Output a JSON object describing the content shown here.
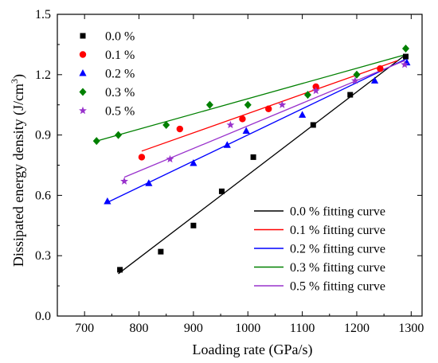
{
  "chart_data": {
    "type": "scatter",
    "xlabel": "Loading rate (GPa/s)",
    "ylabel_main": "Dissipated energy density (J/cm",
    "ylabel_sup": "3",
    "ylabel_end": ")",
    "xlim": [
      650,
      1320
    ],
    "ylim": [
      0.0,
      1.5
    ],
    "xticks": [
      700,
      800,
      900,
      1000,
      1100,
      1200,
      1300
    ],
    "yticks": [
      0.0,
      0.3,
      0.6,
      0.9,
      1.2,
      1.5
    ],
    "grid": false,
    "legend_points_position": "top-left",
    "legend_lines_position": "bottom-right",
    "series": [
      {
        "name": "0.0 %",
        "marker": "square",
        "color": "#000000",
        "points": [
          [
            765,
            0.23
          ],
          [
            840,
            0.32
          ],
          [
            900,
            0.45
          ],
          [
            952,
            0.62
          ],
          [
            1010,
            0.79
          ],
          [
            1120,
            0.95
          ],
          [
            1188,
            1.1
          ],
          [
            1290,
            1.29
          ]
        ]
      },
      {
        "name": "0.1 %",
        "marker": "circle",
        "color": "#ff0000",
        "points": [
          [
            805,
            0.79
          ],
          [
            875,
            0.93
          ],
          [
            990,
            0.98
          ],
          [
            1038,
            1.03
          ],
          [
            1125,
            1.14
          ],
          [
            1243,
            1.23
          ]
        ]
      },
      {
        "name": "0.2 %",
        "marker": "triangle",
        "color": "#0000ff",
        "points": [
          [
            742,
            0.57
          ],
          [
            818,
            0.66
          ],
          [
            900,
            0.76
          ],
          [
            962,
            0.85
          ],
          [
            997,
            0.92
          ],
          [
            1100,
            1.0
          ],
          [
            1233,
            1.17
          ],
          [
            1292,
            1.26
          ]
        ]
      },
      {
        "name": "0.3 %",
        "marker": "diamond",
        "color": "#008000",
        "points": [
          [
            722,
            0.87
          ],
          [
            762,
            0.9
          ],
          [
            850,
            0.95
          ],
          [
            930,
            1.05
          ],
          [
            1000,
            1.05
          ],
          [
            1110,
            1.1
          ],
          [
            1200,
            1.2
          ],
          [
            1290,
            1.33
          ]
        ]
      },
      {
        "name": "0.5 %",
        "marker": "star",
        "color": "#9932cc",
        "points": [
          [
            773,
            0.67
          ],
          [
            857,
            0.78
          ],
          [
            968,
            0.95
          ],
          [
            1063,
            1.05
          ],
          [
            1125,
            1.12
          ],
          [
            1197,
            1.17
          ],
          [
            1288,
            1.25
          ]
        ]
      }
    ],
    "fits": [
      {
        "name": "0.0 % fitting curve",
        "color": "#000000",
        "x": [
          762,
          1290
        ],
        "y": [
          0.21,
          1.3
        ]
      },
      {
        "name": "0.1 % fitting curve",
        "color": "#ff0000",
        "x": [
          805,
          1275
        ],
        "y": [
          0.82,
          1.27
        ]
      },
      {
        "name": "0.2 % fitting curve",
        "color": "#0000ff",
        "x": [
          742,
          1292
        ],
        "y": [
          0.565,
          1.28
        ]
      },
      {
        "name": "0.3 % fitting curve",
        "color": "#008000",
        "x": [
          722,
          1290
        ],
        "y": [
          0.87,
          1.3
        ]
      },
      {
        "name": "0.5 % fitting curve",
        "color": "#9932cc",
        "x": [
          773,
          1288
        ],
        "y": [
          0.69,
          1.27
        ]
      }
    ]
  }
}
